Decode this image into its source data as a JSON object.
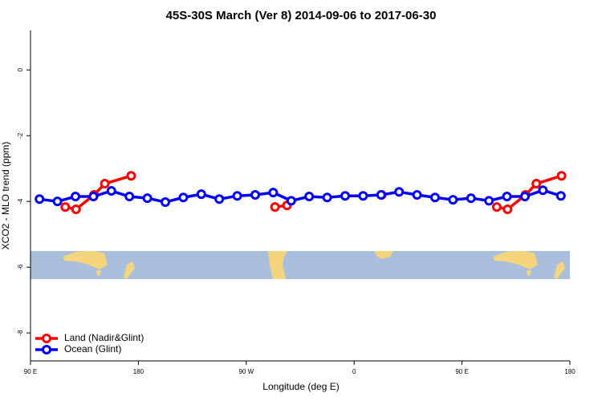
{
  "chart_data": {
    "type": "line",
    "title": "45S-30S March (Ver 8)   2014-09-06 to 2017-06-30",
    "x_label": "Longitude (deg E)",
    "y_label": "XCO2 - MLO trend (ppm)",
    "xlim": [
      90,
      540
    ],
    "ylim": [
      -8.85,
      1.2
    ],
    "xticks": [
      {
        "value": 90,
        "label": "90 E"
      },
      180,
      {
        "value": 270,
        "label": "90 W"
      },
      {
        "value": 360,
        "label": "0"
      },
      {
        "value": 450,
        "label": "90 E"
      },
      {
        "value": 540,
        "label": "180"
      }
    ],
    "yticks": [
      0,
      -2,
      -4,
      -6,
      -8
    ],
    "grid": false,
    "legend_position": "bottom-left",
    "series": [
      {
        "name": "Land (Nadir&Glint)",
        "color": "#ff0000",
        "x": [
          119,
          128,
          143,
          152,
          174,
          null,
          294,
          304,
          null,
          383,
          null,
          479,
          488,
          503,
          512,
          533
        ],
        "values": [
          -4.17,
          -4.24,
          -3.8,
          -3.46,
          -3.22,
          null,
          -4.17,
          -4.12,
          null,
          -3.8,
          null,
          -4.17,
          -4.24,
          -3.8,
          -3.46,
          -3.22
        ]
      },
      {
        "name": "Ocean (Glint)",
        "color": "#0000ff",
        "x": [
          97.5,
          112.5,
          127.5,
          142.5,
          157.5,
          172.5,
          187.5,
          202.5,
          217.5,
          232.5,
          247.5,
          262.5,
          277.5,
          292.5,
          307.5,
          322.5,
          337.5,
          352.5,
          367.5,
          382.5,
          397.5,
          412.5,
          427.5,
          442.5,
          457.5,
          472.5,
          487.5,
          502.5,
          517.5,
          532.5
        ],
        "values": [
          -3.93,
          -4.0,
          -3.85,
          -3.85,
          -3.68,
          -3.85,
          -3.9,
          -4.02,
          -3.88,
          -3.78,
          -3.93,
          -3.83,
          -3.8,
          -3.73,
          -3.98,
          -3.85,
          -3.88,
          -3.83,
          -3.83,
          -3.8,
          -3.71,
          -3.8,
          -3.88,
          -3.95,
          -3.9,
          -3.98,
          -3.85,
          -3.85,
          -3.66,
          -3.83
        ]
      }
    ]
  }
}
